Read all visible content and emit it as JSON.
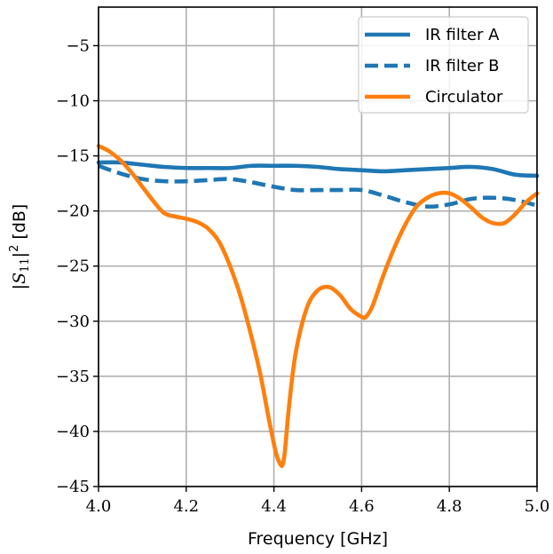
{
  "chart_data": {
    "type": "line",
    "title": "",
    "xlabel": "Frequency [GHz]",
    "ylabel_parts": {
      "prefix": "|",
      "symbol": "S",
      "subscript": "11",
      "suffix": "|",
      "superscript": "2",
      "unit": " [dB]"
    },
    "xlim": [
      4.0,
      5.0
    ],
    "ylim": [
      -45,
      -1.5
    ],
    "x_ticks": [
      4.0,
      4.2,
      4.4,
      4.6,
      4.8,
      5.0
    ],
    "x_tick_labels": [
      "4.0",
      "4.2",
      "4.4",
      "4.6",
      "4.8",
      "5.0"
    ],
    "y_ticks": [
      -45,
      -40,
      -35,
      -30,
      -25,
      -20,
      -15,
      -10,
      -5
    ],
    "y_tick_labels": [
      "−45",
      "−40",
      "−35",
      "−30",
      "−25",
      "−20",
      "−15",
      "−10",
      "−5"
    ],
    "grid": true,
    "legend_position": "top-right",
    "series": [
      {
        "name": "IR filter A",
        "color": "#1f77b4",
        "style": "solid",
        "x": [
          4.0,
          4.05,
          4.1,
          4.15,
          4.2,
          4.25,
          4.3,
          4.35,
          4.4,
          4.45,
          4.5,
          4.55,
          4.6,
          4.65,
          4.7,
          4.75,
          4.8,
          4.85,
          4.9,
          4.95,
          5.0
        ],
        "y": [
          -15.6,
          -15.6,
          -15.8,
          -16.0,
          -16.1,
          -16.1,
          -16.1,
          -15.9,
          -15.9,
          -15.9,
          -16.0,
          -16.2,
          -16.3,
          -16.4,
          -16.3,
          -16.2,
          -16.1,
          -16.0,
          -16.2,
          -16.7,
          -16.8
        ]
      },
      {
        "name": "IR filter B",
        "color": "#1f77b4",
        "style": "dashed",
        "x": [
          4.0,
          4.05,
          4.1,
          4.15,
          4.2,
          4.25,
          4.3,
          4.35,
          4.4,
          4.45,
          4.5,
          4.55,
          4.6,
          4.65,
          4.7,
          4.75,
          4.8,
          4.85,
          4.9,
          4.95,
          5.0
        ],
        "y": [
          -15.9,
          -16.6,
          -17.1,
          -17.3,
          -17.3,
          -17.2,
          -17.1,
          -17.4,
          -17.8,
          -18.1,
          -18.1,
          -18.1,
          -18.1,
          -18.6,
          -19.2,
          -19.6,
          -19.4,
          -18.9,
          -18.8,
          -19.0,
          -19.5
        ]
      },
      {
        "name": "Circulator",
        "color": "#ff7f0e",
        "style": "solid",
        "x": [
          4.0,
          4.025,
          4.05,
          4.075,
          4.1,
          4.125,
          4.15,
          4.175,
          4.2,
          4.225,
          4.25,
          4.275,
          4.3,
          4.325,
          4.35,
          4.37,
          4.39,
          4.405,
          4.415,
          4.42,
          4.425,
          4.435,
          4.45,
          4.475,
          4.5,
          4.525,
          4.55,
          4.575,
          4.6,
          4.61,
          4.625,
          4.65,
          4.675,
          4.7,
          4.725,
          4.75,
          4.775,
          4.8,
          4.825,
          4.85,
          4.875,
          4.9,
          4.925,
          4.95,
          4.975,
          5.0
        ],
        "y": [
          -14.1,
          -14.6,
          -15.4,
          -16.5,
          -17.8,
          -19.1,
          -20.2,
          -20.5,
          -20.7,
          -21.0,
          -21.6,
          -22.8,
          -25.0,
          -27.9,
          -31.6,
          -35.0,
          -39.2,
          -42.0,
          -43.0,
          -43.0,
          -41.8,
          -37.5,
          -32.8,
          -28.8,
          -27.2,
          -26.9,
          -27.6,
          -28.9,
          -29.6,
          -29.6,
          -28.6,
          -25.8,
          -23.3,
          -21.2,
          -19.6,
          -18.8,
          -18.4,
          -18.4,
          -18.9,
          -19.7,
          -20.6,
          -21.1,
          -21.1,
          -20.3,
          -19.2,
          -18.4
        ]
      }
    ]
  }
}
